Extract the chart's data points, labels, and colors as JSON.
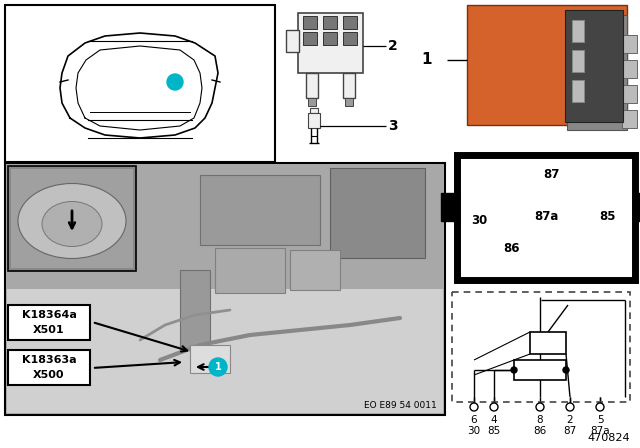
{
  "bg_color": "#ffffff",
  "diagram_number": "470824",
  "eo_number": "EO E89 54 0011",
  "relay_color": "#d4622a",
  "relay_dark": "#222222",
  "pin_numbers_bottom_row1": [
    "6",
    "4",
    "8",
    "2",
    "5"
  ],
  "pin_numbers_bottom_row2": [
    "30",
    "85",
    "86",
    "87",
    "87a"
  ],
  "label1": "K18364a\nX501",
  "label2": "K18363a\nX500"
}
